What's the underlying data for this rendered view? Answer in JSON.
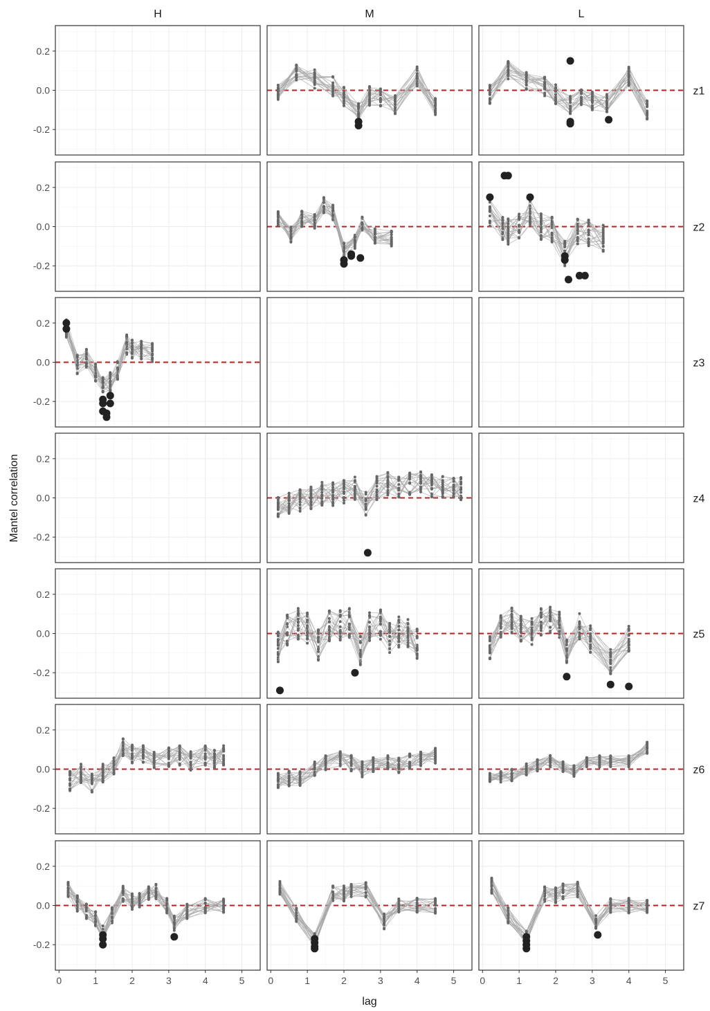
{
  "chart_data": {
    "type": "line",
    "xlabel": "lag",
    "ylabel": "Mantel correlation",
    "xlim": [
      -0.1,
      5.5
    ],
    "ylim": [
      -0.33,
      0.33
    ],
    "xticks": [
      0,
      1,
      2,
      3,
      4,
      5
    ],
    "yticks": [
      -0.2,
      0.0,
      0.2
    ],
    "ytick_labels": [
      "-0.2",
      "0.0",
      "0.2"
    ],
    "reference_line": {
      "y": 0.0,
      "style": "dashed",
      "color": "#b22222"
    },
    "columns": [
      "H",
      "M",
      "L"
    ],
    "rows": [
      "z1",
      "z2",
      "z3",
      "z4",
      "z5",
      "z6",
      "z7"
    ],
    "line_color": "#a8a8a8",
    "point_color": "#666666",
    "highlight_color": "#222222",
    "panels": [
      {
        "row": "z1",
        "col": "M",
        "lags": [
          0.2,
          0.7,
          1.2,
          1.7,
          2.0,
          2.4,
          2.7,
          3.0,
          3.4,
          4.0,
          4.5
        ],
        "center": [
          -0.01,
          0.09,
          0.06,
          0.02,
          -0.03,
          -0.11,
          -0.03,
          -0.04,
          -0.07,
          0.07,
          -0.09
        ],
        "spread": 0.05,
        "highlights": [
          [
            2.4,
            -0.16
          ],
          [
            2.4,
            -0.18
          ]
        ]
      },
      {
        "row": "z1",
        "col": "L",
        "lags": [
          0.2,
          0.7,
          1.2,
          1.7,
          2.0,
          2.4,
          2.7,
          3.0,
          3.4,
          4.0,
          4.5
        ],
        "center": [
          -0.02,
          0.1,
          0.05,
          0.02,
          -0.02,
          -0.08,
          -0.03,
          -0.05,
          -0.07,
          0.07,
          -0.1
        ],
        "spread": 0.05,
        "highlights": [
          [
            2.4,
            0.15
          ],
          [
            2.4,
            -0.16
          ],
          [
            2.4,
            -0.17
          ],
          [
            3.45,
            -0.15
          ]
        ]
      },
      {
        "row": "z2",
        "col": "M",
        "lags": [
          0.2,
          0.55,
          0.85,
          1.2,
          1.45,
          1.7,
          2.0,
          2.3,
          2.5,
          2.85,
          3.3
        ],
        "center": [
          0.04,
          -0.04,
          0.04,
          0.03,
          0.11,
          0.07,
          -0.12,
          -0.08,
          0.02,
          -0.05,
          -0.06
        ],
        "spread": 0.04,
        "highlights": [
          [
            2.0,
            -0.17
          ],
          [
            2.0,
            -0.19
          ],
          [
            2.2,
            -0.14
          ],
          [
            2.2,
            -0.15
          ],
          [
            2.45,
            -0.16
          ]
        ]
      },
      {
        "row": "z2",
        "col": "L",
        "lags": [
          0.2,
          0.55,
          0.7,
          1.0,
          1.3,
          1.6,
          1.9,
          2.25,
          2.6,
          2.9,
          3.3
        ],
        "center": [
          0.07,
          0.0,
          -0.02,
          0.01,
          0.07,
          0.0,
          -0.01,
          -0.13,
          -0.02,
          -0.03,
          -0.06
        ],
        "spread": 0.07,
        "highlights": [
          [
            0.2,
            0.15
          ],
          [
            0.6,
            0.26
          ],
          [
            0.7,
            0.26
          ],
          [
            1.3,
            0.15
          ],
          [
            2.25,
            -0.15
          ],
          [
            2.25,
            -0.17
          ],
          [
            2.35,
            -0.27
          ],
          [
            2.65,
            -0.25
          ],
          [
            2.8,
            -0.25
          ]
        ]
      },
      {
        "row": "z3",
        "col": "H",
        "lags": [
          0.2,
          0.5,
          0.75,
          1.0,
          1.2,
          1.4,
          1.6,
          1.85,
          2.0,
          2.25,
          2.55
        ],
        "center": [
          0.17,
          -0.01,
          0.02,
          -0.05,
          -0.12,
          -0.1,
          -0.04,
          0.09,
          0.07,
          0.06,
          0.05
        ],
        "spread": 0.05,
        "highlights": [
          [
            0.2,
            0.2
          ],
          [
            0.2,
            0.17
          ],
          [
            1.2,
            -0.19
          ],
          [
            1.2,
            -0.21
          ],
          [
            1.2,
            -0.25
          ],
          [
            1.3,
            -0.26
          ],
          [
            1.3,
            -0.28
          ],
          [
            1.4,
            -0.21
          ],
          [
            1.4,
            -0.17
          ]
        ]
      },
      {
        "row": "z4",
        "col": "M",
        "lags": [
          0.2,
          0.5,
          0.8,
          1.1,
          1.4,
          1.7,
          2.0,
          2.3,
          2.6,
          2.9,
          3.2,
          3.5,
          3.8,
          4.1,
          4.4,
          4.7,
          5.0,
          5.2
        ],
        "center": [
          -0.05,
          -0.02,
          -0.01,
          0.0,
          0.02,
          0.02,
          0.03,
          0.05,
          -0.03,
          0.05,
          0.07,
          0.06,
          0.07,
          0.08,
          0.06,
          0.06,
          0.06,
          0.05
        ],
        "spread": 0.06,
        "highlights": [
          [
            2.65,
            -0.28
          ]
        ]
      },
      {
        "row": "z5",
        "col": "M",
        "lags": [
          0.2,
          0.45,
          0.75,
          1.0,
          1.3,
          1.6,
          1.9,
          2.15,
          2.45,
          2.7,
          3.0,
          3.25,
          3.5,
          3.75,
          4.0
        ],
        "center": [
          -0.07,
          0.02,
          0.05,
          0.03,
          -0.06,
          0.04,
          0.04,
          0.05,
          -0.08,
          0.04,
          0.05,
          -0.02,
          0.01,
          0.0,
          -0.05
        ],
        "spread": 0.08,
        "highlights": [
          [
            0.25,
            -0.29
          ],
          [
            2.3,
            -0.2
          ]
        ]
      },
      {
        "row": "z5",
        "col": "L",
        "lags": [
          0.2,
          0.5,
          0.8,
          1.05,
          1.35,
          1.6,
          1.85,
          2.1,
          2.3,
          2.65,
          2.95,
          3.5,
          4.0
        ],
        "center": [
          -0.07,
          0.03,
          0.07,
          0.02,
          0.01,
          0.06,
          0.07,
          0.05,
          -0.09,
          0.04,
          -0.03,
          -0.15,
          -0.03
        ],
        "spread": 0.07,
        "highlights": [
          [
            2.3,
            -0.22
          ],
          [
            3.5,
            -0.26
          ],
          [
            4.0,
            -0.27
          ]
        ]
      },
      {
        "row": "z6",
        "col": "H",
        "lags": [
          0.3,
          0.6,
          0.9,
          1.2,
          1.5,
          1.75,
          2.0,
          2.3,
          2.6,
          3.0,
          3.3,
          3.6,
          4.0,
          4.25,
          4.5
        ],
        "center": [
          -0.06,
          -0.02,
          -0.07,
          -0.02,
          0.01,
          0.11,
          0.08,
          0.07,
          0.05,
          0.06,
          0.07,
          0.04,
          0.07,
          0.05,
          0.07
        ],
        "spread": 0.05,
        "highlights": []
      },
      {
        "row": "z6",
        "col": "M",
        "lags": [
          0.2,
          0.5,
          0.8,
          1.2,
          1.5,
          1.9,
          2.2,
          2.5,
          2.8,
          3.2,
          3.5,
          3.8,
          4.1,
          4.5
        ],
        "center": [
          -0.06,
          -0.05,
          -0.05,
          0.0,
          0.03,
          0.05,
          0.03,
          0.0,
          0.02,
          0.03,
          0.02,
          0.04,
          0.05,
          0.07
        ],
        "spread": 0.04,
        "highlights": []
      },
      {
        "row": "z6",
        "col": "L",
        "lags": [
          0.2,
          0.5,
          0.8,
          1.2,
          1.5,
          1.85,
          2.2,
          2.5,
          2.85,
          3.2,
          3.5,
          4.0,
          4.5
        ],
        "center": [
          -0.04,
          -0.04,
          -0.03,
          0.0,
          0.02,
          0.04,
          0.01,
          -0.01,
          0.03,
          0.04,
          0.04,
          0.04,
          0.11
        ],
        "spread": 0.03,
        "highlights": []
      },
      {
        "row": "z7",
        "col": "H",
        "lags": [
          0.25,
          0.5,
          0.75,
          1.0,
          1.2,
          1.45,
          1.75,
          2.0,
          2.2,
          2.45,
          2.65,
          2.95,
          3.15,
          3.5,
          4.0,
          4.5
        ],
        "center": [
          0.08,
          0.01,
          -0.03,
          -0.07,
          -0.14,
          -0.05,
          0.06,
          0.02,
          0.03,
          0.06,
          0.07,
          0.0,
          -0.09,
          -0.03,
          0.0,
          0.0
        ],
        "spread": 0.04,
        "highlights": [
          [
            1.2,
            -0.15
          ],
          [
            1.2,
            -0.17
          ],
          [
            1.2,
            -0.2
          ],
          [
            3.15,
            -0.16
          ]
        ]
      },
      {
        "row": "z7",
        "col": "M",
        "lags": [
          0.25,
          0.7,
          1.2,
          1.7,
          2.0,
          2.2,
          2.6,
          3.1,
          3.5,
          4.0,
          4.5
        ],
        "center": [
          0.09,
          -0.05,
          -0.18,
          0.06,
          0.06,
          0.07,
          0.08,
          -0.08,
          0.0,
          0.0,
          0.0
        ],
        "spread": 0.04,
        "highlights": [
          [
            1.2,
            -0.17
          ],
          [
            1.2,
            -0.19
          ],
          [
            1.2,
            -0.21
          ],
          [
            1.2,
            -0.22
          ]
        ]
      },
      {
        "row": "z7",
        "col": "L",
        "lags": [
          0.25,
          0.7,
          1.2,
          1.7,
          2.0,
          2.2,
          2.6,
          3.1,
          3.5,
          4.0,
          4.5
        ],
        "center": [
          0.1,
          -0.05,
          -0.17,
          0.06,
          0.05,
          0.07,
          0.08,
          -0.09,
          0.0,
          0.0,
          0.0
        ],
        "spread": 0.04,
        "highlights": [
          [
            1.2,
            -0.16
          ],
          [
            1.2,
            -0.18
          ],
          [
            1.2,
            -0.2
          ],
          [
            1.2,
            -0.22
          ],
          [
            3.15,
            -0.15
          ]
        ]
      }
    ]
  }
}
